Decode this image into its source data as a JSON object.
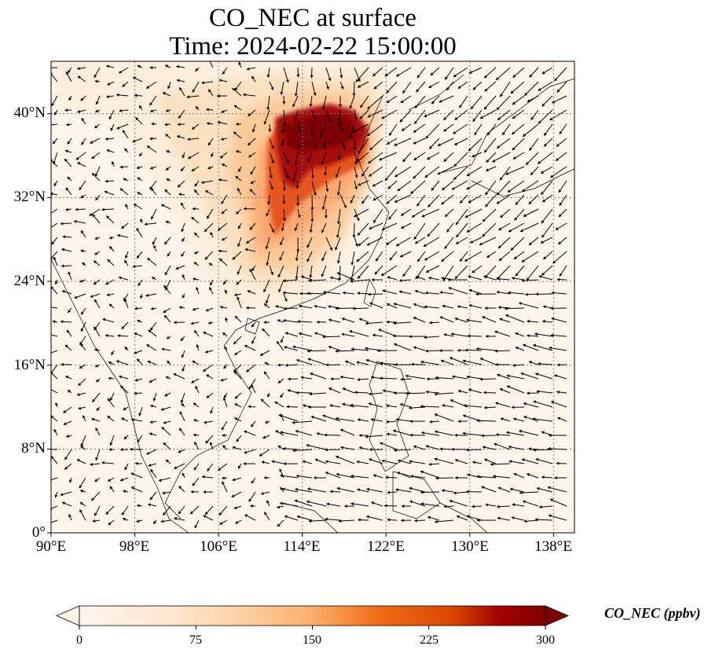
{
  "title": {
    "line1": "CO_NEC at surface",
    "line2": "Time: 2024-02-22 15:00:00"
  },
  "map": {
    "lon_range": [
      90,
      140
    ],
    "lat_range": [
      0,
      45
    ],
    "lat_ticks": [
      "0°",
      "8°N",
      "16°N",
      "24°N",
      "32°N",
      "40°N"
    ],
    "lon_ticks": [
      "90°E",
      "98°E",
      "106°E",
      "114°E",
      "122°E",
      "130°E",
      "138°E"
    ],
    "gridlines": true,
    "background_color": "#fff5eb",
    "plume_color_high": "#7f0000",
    "vectors": "wind arrows (black)"
  },
  "colorbar": {
    "label": "CO_NEC (ppbv)",
    "ticks": [
      "0",
      "75",
      "150",
      "225",
      "300"
    ],
    "range": [
      0,
      300
    ],
    "colormap": [
      "#fff5eb",
      "#fdd0a2",
      "#fdae6b",
      "#f16913",
      "#d94801",
      "#a50000",
      "#7f0000"
    ],
    "extend": "both"
  }
}
